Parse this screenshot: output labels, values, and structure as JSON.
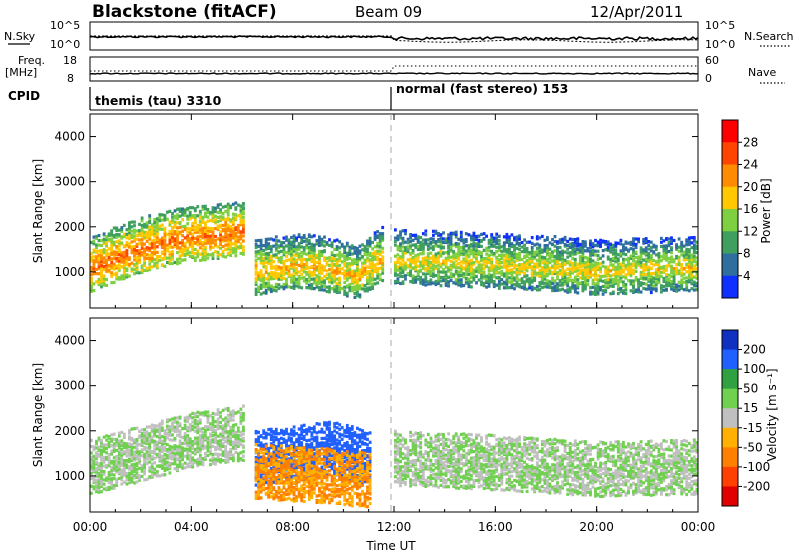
{
  "header": {
    "station": "Blackstone (fitACF)",
    "beam": "Beam 09",
    "date": "12/Apr/2011"
  },
  "status_panels": {
    "nsky_label": "N.Sky",
    "nsky_ticks": [
      "10^5",
      "10^0"
    ],
    "nsearch_label": "N.Search",
    "nsearch_ticks": [
      "10^5",
      "10^0"
    ],
    "freq_label_line1": "Freq.",
    "freq_label_line2": "[MHz]",
    "freq_ticks": [
      "18",
      "8"
    ],
    "nave_label": "Nave",
    "nave_ticks": [
      "60",
      "0"
    ],
    "cpid_label": "CPID",
    "cpid_segments": [
      {
        "label": "themis (tau) 3310",
        "start_hour": 0
      },
      {
        "label": "normal (fast stereo) 153",
        "start_hour": 12
      }
    ]
  },
  "time_axis": {
    "label": "Time UT",
    "ticks": [
      "00:00",
      "04:00",
      "08:00",
      "12:00",
      "16:00",
      "20:00",
      "00:00"
    ]
  },
  "power_colorbar": {
    "label": "Power [dB]",
    "ticks": [
      "28",
      "24",
      "20",
      "16",
      "12",
      "8",
      "4"
    ],
    "colors": [
      "#ff0000",
      "#ff4500",
      "#ff8c00",
      "#ffc800",
      "#7fd040",
      "#3f9f5f",
      "#2f6fa0",
      "#1030ff"
    ]
  },
  "velocity_colorbar": {
    "label": "Velocity [m s⁻¹]",
    "ticks": [
      "200",
      "100",
      "50",
      "15",
      "-15",
      "-50",
      "-100",
      "-200"
    ],
    "colors": [
      "#1030c0",
      "#2060ff",
      "#30a040",
      "#70d050",
      "#c0c0c0",
      "#ffb000",
      "#ff8000",
      "#ff4000",
      "#e00000"
    ]
  },
  "chart_data": [
    {
      "type": "heatmap",
      "title": "",
      "xlabel": "",
      "ylabel": "Slant Range [km]",
      "quantity": "Power [dB]",
      "xlim": [
        0,
        24
      ],
      "ylim": [
        200,
        4500
      ],
      "yticks": [
        "1000",
        "2000",
        "3000",
        "4000"
      ],
      "series": [
        {
          "x": [
            0.0,
            1.0,
            2.0,
            3.0,
            4.0,
            5.0,
            6.0
          ],
          "y": [
            1050,
            1300,
            1500,
            1650,
            1750,
            1800,
            1850
          ],
          "value": 24
        },
        {
          "x": [
            6.5,
            7.5,
            8.5,
            9.5,
            10.5,
            11.5
          ],
          "y": [
            1000,
            1100,
            1150,
            1050,
            900,
            1300
          ],
          "value": 20
        },
        {
          "x": [
            12.0,
            14.0,
            16.0,
            18.0,
            20.0,
            22.0,
            24.0
          ],
          "y": [
            1250,
            1200,
            1150,
            1100,
            1000,
            1050,
            1100
          ],
          "value": 18
        }
      ]
    },
    {
      "type": "heatmap",
      "title": "",
      "xlabel": "Time UT",
      "ylabel": "Slant Range [km]",
      "quantity": "Velocity [m s⁻¹]",
      "xlim": [
        0,
        24
      ],
      "ylim": [
        200,
        4500
      ],
      "yticks": [
        "1000",
        "2000",
        "3000",
        "4000"
      ],
      "series": [
        {
          "x": [
            0.0,
            2.0,
            4.0,
            6.0
          ],
          "y": [
            1100,
            1400,
            1700,
            1850
          ],
          "value": 0
        },
        {
          "x": [
            6.5,
            8.0,
            9.5,
            11.0
          ],
          "y": [
            1300,
            1400,
            1500,
            1300
          ],
          "value": 120
        },
        {
          "x": [
            6.5,
            8.0,
            9.5,
            11.0
          ],
          "y": [
            1000,
            950,
            900,
            800
          ],
          "value": -80
        },
        {
          "x": [
            12.0,
            16.0,
            20.0,
            24.0
          ],
          "y": [
            1300,
            1200,
            1050,
            1100
          ],
          "value": 0
        }
      ]
    }
  ]
}
